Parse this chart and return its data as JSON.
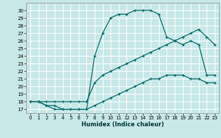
{
  "xlabel": "Humidex (Indice chaleur)",
  "bg_color": "#c8e8e8",
  "line_color": "#006666",
  "grid_color": "#ffffff",
  "xlim": [
    -0.5,
    23.5
  ],
  "ylim": [
    16.5,
    31.0
  ],
  "xticks": [
    0,
    1,
    2,
    3,
    4,
    5,
    6,
    7,
    8,
    9,
    10,
    11,
    12,
    13,
    14,
    15,
    16,
    17,
    18,
    19,
    20,
    21,
    22,
    23
  ],
  "yticks": [
    17,
    18,
    19,
    20,
    21,
    22,
    23,
    24,
    25,
    26,
    27,
    28,
    29,
    30
  ],
  "curve1_x": [
    0,
    1,
    2,
    3,
    4,
    5,
    6,
    7,
    8,
    9,
    10,
    11,
    12,
    13,
    14,
    15,
    16,
    17,
    18,
    19,
    20,
    21,
    22,
    23
  ],
  "curve1_y": [
    18.0,
    18.0,
    17.5,
    17.0,
    17.0,
    17.0,
    17.0,
    17.0,
    17.5,
    18.0,
    18.5,
    19.0,
    19.5,
    20.0,
    20.5,
    21.0,
    21.0,
    21.5,
    21.5,
    21.5,
    21.0,
    21.0,
    20.5,
    20.5
  ],
  "curve2_x": [
    0,
    1,
    2,
    3,
    4,
    5,
    6,
    7,
    8,
    9,
    10,
    11,
    12,
    13,
    14,
    15,
    16,
    17,
    18,
    19,
    20,
    21,
    22,
    23
  ],
  "curve2_y": [
    18.0,
    18.0,
    18.0,
    18.0,
    18.0,
    18.0,
    18.0,
    18.0,
    20.5,
    21.5,
    22.0,
    22.5,
    23.0,
    23.5,
    24.0,
    24.5,
    25.0,
    25.5,
    26.0,
    26.5,
    27.0,
    27.5,
    26.5,
    25.5
  ],
  "curve3_x": [
    0,
    1,
    2,
    3,
    4,
    5,
    6,
    7,
    8,
    9,
    10,
    11,
    12,
    13,
    14,
    15,
    16,
    17,
    18,
    19,
    20,
    21,
    22,
    23
  ],
  "curve3_y": [
    18.0,
    18.0,
    17.5,
    17.5,
    17.0,
    17.0,
    17.0,
    17.0,
    24.0,
    27.0,
    29.0,
    29.5,
    29.5,
    30.0,
    30.0,
    30.0,
    29.5,
    26.5,
    26.0,
    25.5,
    26.0,
    25.5,
    21.5,
    21.5
  ]
}
